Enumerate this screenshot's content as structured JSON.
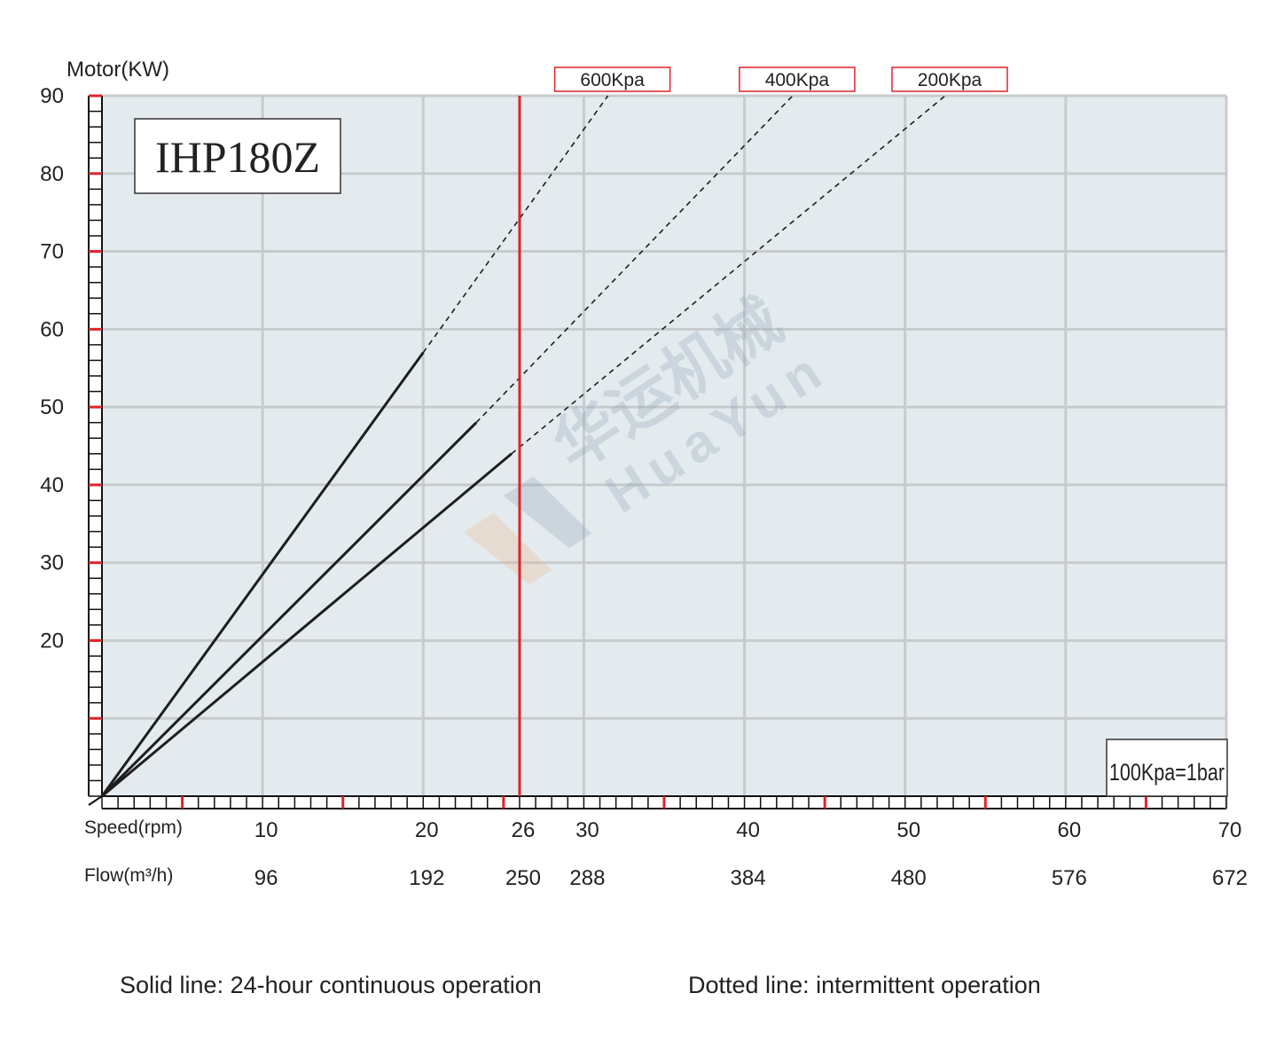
{
  "chart_data": {
    "type": "line",
    "model_label": "IHP180Z",
    "y_axis_title": "Motor(KW)",
    "y_ticks": [
      20,
      30,
      40,
      50,
      60,
      70,
      80,
      90
    ],
    "ylim": [
      0,
      90
    ],
    "xlim": [
      0,
      70
    ],
    "x_row1_title": "Speed(rpm)",
    "x_row1_ticks": [
      {
        "x": 10,
        "label": "10"
      },
      {
        "x": 20,
        "label": "20"
      },
      {
        "x": 26,
        "label": "26"
      },
      {
        "x": 30,
        "label": "30"
      },
      {
        "x": 40,
        "label": "40"
      },
      {
        "x": 50,
        "label": "50"
      },
      {
        "x": 60,
        "label": "60"
      },
      {
        "x": 70,
        "label": "70"
      }
    ],
    "x_row2_title": "Flow(m³/h)",
    "x_row2_ticks": [
      {
        "x": 10,
        "label": "96"
      },
      {
        "x": 20,
        "label": "192"
      },
      {
        "x": 26,
        "label": "250"
      },
      {
        "x": 30,
        "label": "288"
      },
      {
        "x": 40,
        "label": "384"
      },
      {
        "x": 50,
        "label": "480"
      },
      {
        "x": 60,
        "label": "576"
      },
      {
        "x": 70,
        "label": "672"
      }
    ],
    "max_speed_marker": 26,
    "unit_note": "100Kpa=1bar",
    "grid": true,
    "series": [
      {
        "name": "600Kpa",
        "solid": [
          [
            0,
            0
          ],
          [
            20,
            57
          ]
        ],
        "dotted": [
          [
            20,
            57
          ],
          [
            31.5,
            90
          ]
        ]
      },
      {
        "name": "400Kpa",
        "solid": [
          [
            0,
            0
          ],
          [
            23.3,
            48
          ]
        ],
        "dotted": [
          [
            23.3,
            48
          ],
          [
            43,
            90
          ]
        ]
      },
      {
        "name": "200Kpa",
        "solid": [
          [
            0,
            0
          ],
          [
            25.5,
            44
          ]
        ],
        "dotted": [
          [
            25.5,
            44
          ],
          [
            52.5,
            90
          ]
        ]
      }
    ],
    "colors": {
      "plot_bg": "#e4ebee",
      "grid": "#c8cbce",
      "accent": "#e0232a",
      "line": "#1e1e1e"
    },
    "watermark": {
      "cn": "华运机械",
      "en": "HuaYun"
    },
    "footnotes": {
      "solid": "Solid line: 24-hour continuous operation",
      "dotted": "Dotted line: intermittent operation"
    }
  }
}
